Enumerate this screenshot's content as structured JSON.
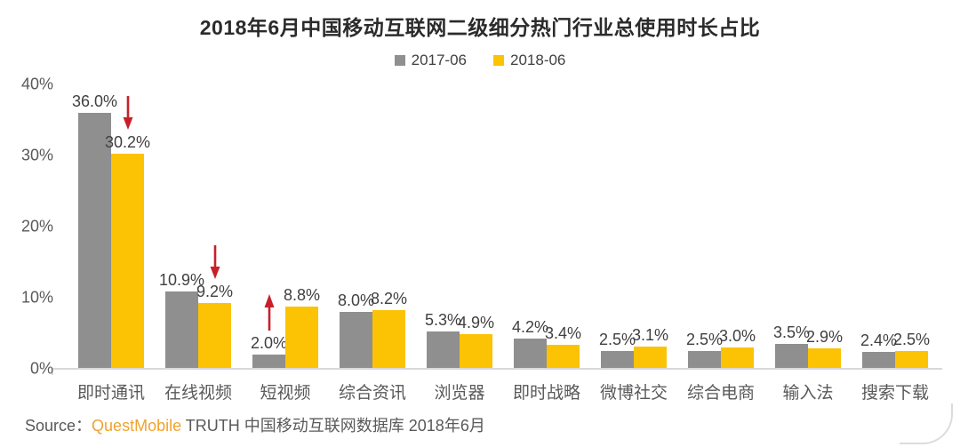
{
  "header": {
    "title": "2018年6月中国移动互联网二级细分热门行业总使用时长占比"
  },
  "legend": [
    {
      "label": "2017-06",
      "color": "#8F8F8F"
    },
    {
      "label": "2018-06",
      "color": "#FCC204"
    }
  ],
  "chart_data": {
    "type": "bar",
    "title": "2018年6月中国移动互联网二级细分热门行业总使用时长占比",
    "categories": [
      "即时通讯",
      "在线视频",
      "短视频",
      "综合资讯",
      "浏览器",
      "即时战略",
      "微博社交",
      "综合电商",
      "输入法",
      "搜索下载"
    ],
    "series": [
      {
        "name": "2017-06",
        "color": "#8F8F8F",
        "values": [
          36.0,
          10.9,
          2.0,
          8.0,
          5.3,
          4.2,
          2.5,
          2.5,
          3.5,
          2.4
        ]
      },
      {
        "name": "2018-06",
        "color": "#FCC204",
        "values": [
          30.2,
          9.2,
          8.8,
          8.2,
          4.9,
          3.4,
          3.1,
          3.0,
          2.9,
          2.5
        ]
      }
    ],
    "value_labels": [
      [
        "36.0%",
        "10.9%",
        "2.0%",
        "8.0%",
        "5.3%",
        "4.2%",
        "2.5%",
        "2.5%",
        "3.5%",
        "2.4%"
      ],
      [
        "30.2%",
        "9.2%",
        "8.8%",
        "8.2%",
        "4.9%",
        "3.4%",
        "3.1%",
        "3.0%",
        "2.9%",
        "2.5%"
      ]
    ],
    "xlabel": "",
    "ylabel": "",
    "ylim": [
      0,
      40
    ],
    "yticks": [
      "0%",
      "10%",
      "20%",
      "30%",
      "40%"
    ],
    "grid": false,
    "legend_position": "top",
    "annotations": [
      {
        "category_index": 0,
        "series_index": 1,
        "direction": "down"
      },
      {
        "category_index": 1,
        "series_index": 1,
        "direction": "down"
      },
      {
        "category_index": 2,
        "series_index": 0,
        "direction": "up"
      }
    ],
    "arrow_color": "#C8202A"
  },
  "footer": {
    "source_label": "Source：",
    "source_brand": "QuestMobile",
    "source_rest": " TRUTH 中国移动互联网数据库 2018年6月",
    "brand_color": "#F0A22E"
  }
}
